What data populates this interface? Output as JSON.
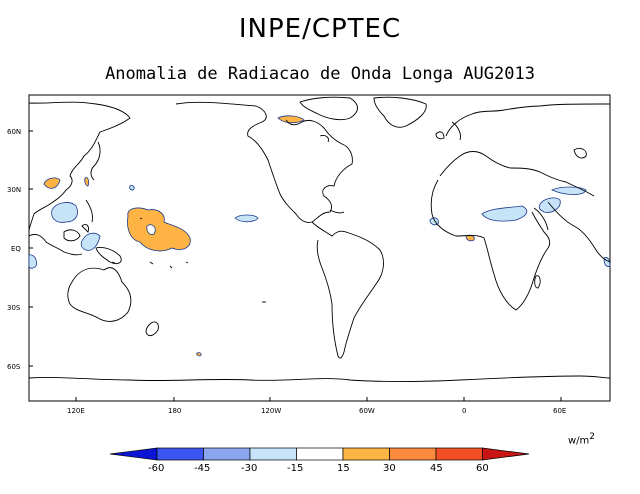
{
  "header": {
    "title": "INPE/CPTEC",
    "subtitle": "Anomalia de Radiacao de Onda Longa AUG2013"
  },
  "map": {
    "lat_labels": [
      "60N",
      "30N",
      "EQ",
      "30S",
      "60S"
    ],
    "lon_labels": [
      "120E",
      "180",
      "120W",
      "60W",
      "0",
      "60E"
    ],
    "colors": {
      "land_outline": "#000000",
      "positive_anomaly": "#fdb445",
      "negative_anomaly": "#c6e3f8",
      "contour": "#1a3a8c"
    }
  },
  "colorbar": {
    "unit": "w/m",
    "unit_exponent": "2",
    "labels": [
      "-60",
      "-45",
      "-30",
      "-15",
      "15",
      "30",
      "45",
      "60"
    ],
    "colors": [
      "#0c14d4",
      "#3a55f0",
      "#8aa6ee",
      "#c6e3f8",
      "#ffffff",
      "#fdb445",
      "#fb8a3e",
      "#f24f24",
      "#c81414"
    ]
  }
}
